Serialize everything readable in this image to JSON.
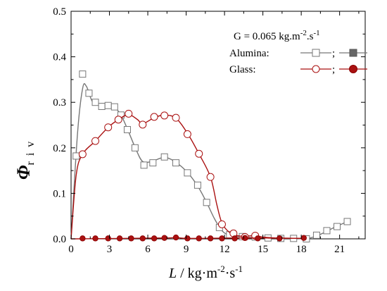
{
  "chart_data": {
    "type": "line",
    "xlim": [
      0,
      23
    ],
    "ylim": [
      0,
      0.5
    ],
    "xticks": [
      0,
      3,
      6,
      9,
      12,
      15,
      18,
      21
    ],
    "yticks": [
      0.0,
      0.1,
      0.2,
      0.3,
      0.4,
      0.5
    ],
    "xtick_labels": [
      "0",
      "3",
      "6",
      "9",
      "12",
      "15",
      "18",
      "21"
    ],
    "ytick_labels": [
      "0.0",
      "0.1",
      "0.2",
      "0.3",
      "0.4",
      "0.5"
    ],
    "xlabel": {
      "italic": "L",
      "text": " / kg·m",
      "sup1": "-2",
      "mid": "·s",
      "sup2": "-1"
    },
    "ylabel": {
      "symbol": "Φ",
      "subscript": "r i v"
    },
    "annotation": {
      "text": "G = 0.065 kg.m",
      "sup1": "-2",
      "mid": ".s",
      "sup2": "-1"
    },
    "legend": {
      "position": "top-right",
      "alumina_label": "Alumina:",
      "glass_label": "Glass:",
      "separator": ";"
    },
    "series": [
      {
        "name": "Alumina",
        "color": "#777777",
        "marker": "square-open",
        "points": [
          [
            0.4,
            0.182
          ],
          [
            0.9,
            0.362
          ],
          [
            1.4,
            0.32
          ],
          [
            1.9,
            0.3
          ],
          [
            2.4,
            0.291
          ],
          [
            2.9,
            0.293
          ],
          [
            3.4,
            0.29
          ],
          [
            3.9,
            0.272
          ],
          [
            4.4,
            0.24
          ],
          [
            5.0,
            0.2
          ],
          [
            5.7,
            0.162
          ],
          [
            6.4,
            0.167
          ],
          [
            7.3,
            0.18
          ],
          [
            8.2,
            0.167
          ],
          [
            9.1,
            0.145
          ],
          [
            9.9,
            0.118
          ],
          [
            10.6,
            0.08
          ],
          [
            11.6,
            0.025
          ],
          [
            12.4,
            0.009
          ],
          [
            13.4,
            0.005
          ],
          [
            14.4,
            0.004
          ],
          [
            15.4,
            0.002
          ],
          [
            16.4,
            0.001
          ],
          [
            17.4,
            0.001
          ],
          [
            18.4,
            0.0
          ],
          [
            19.2,
            0.008
          ],
          [
            20.0,
            0.018
          ],
          [
            20.8,
            0.027
          ],
          [
            21.6,
            0.038
          ]
        ],
        "curve": [
          [
            0,
            0
          ],
          [
            0.5,
            0.23
          ],
          [
            0.9,
            0.33
          ],
          [
            1.2,
            0.335
          ],
          [
            1.7,
            0.3
          ],
          [
            2.4,
            0.292
          ],
          [
            3.3,
            0.29
          ],
          [
            3.9,
            0.272
          ],
          [
            4.5,
            0.235
          ],
          [
            5.1,
            0.195
          ],
          [
            5.6,
            0.17
          ],
          [
            6.3,
            0.17
          ],
          [
            7.3,
            0.179
          ],
          [
            8.2,
            0.168
          ],
          [
            9.1,
            0.146
          ],
          [
            9.9,
            0.116
          ],
          [
            10.6,
            0.08
          ],
          [
            11.2,
            0.045
          ],
          [
            11.8,
            0.018
          ],
          [
            12.4,
            0.008
          ],
          [
            13.5,
            0.004
          ],
          [
            15.0,
            0.002
          ],
          [
            17.0,
            0.001
          ],
          [
            18.5,
            0.001
          ],
          [
            19.5,
            0.01
          ],
          [
            20.5,
            0.024
          ],
          [
            21.6,
            0.038
          ]
        ]
      },
      {
        "name": "Glass",
        "color": "#aa1111",
        "marker": "circle-open",
        "points": [
          [
            0.9,
            0.186
          ],
          [
            1.9,
            0.215
          ],
          [
            2.9,
            0.245
          ],
          [
            3.7,
            0.262
          ],
          [
            4.5,
            0.275
          ],
          [
            5.6,
            0.251
          ],
          [
            6.5,
            0.268
          ],
          [
            7.3,
            0.271
          ],
          [
            8.2,
            0.266
          ],
          [
            9.1,
            0.23
          ],
          [
            10.0,
            0.187
          ],
          [
            10.9,
            0.136
          ],
          [
            11.8,
            0.032
          ],
          [
            12.7,
            0.012
          ],
          [
            13.6,
            0.004
          ],
          [
            14.4,
            0.007
          ]
        ],
        "curve": [
          [
            0,
            0
          ],
          [
            0.4,
            0.14
          ],
          [
            0.9,
            0.186
          ],
          [
            1.9,
            0.215
          ],
          [
            2.9,
            0.245
          ],
          [
            3.7,
            0.262
          ],
          [
            4.5,
            0.273
          ],
          [
            5.2,
            0.262
          ],
          [
            5.6,
            0.253
          ],
          [
            6.5,
            0.266
          ],
          [
            7.3,
            0.272
          ],
          [
            8.2,
            0.265
          ],
          [
            9.1,
            0.232
          ],
          [
            10.0,
            0.187
          ],
          [
            10.9,
            0.136
          ],
          [
            11.4,
            0.075
          ],
          [
            11.8,
            0.035
          ],
          [
            12.4,
            0.014
          ],
          [
            13.2,
            0.006
          ],
          [
            14.4,
            0.007
          ],
          [
            15.0,
            0.004
          ],
          [
            16.0,
            0.002
          ],
          [
            18.0,
            0.001
          ]
        ]
      },
      {
        "name": "Glass (filled)",
        "color": "#aa1111",
        "marker": "circle-filled",
        "points": [
          [
            0.9,
            0.001
          ],
          [
            1.9,
            0.001
          ],
          [
            2.9,
            0.001
          ],
          [
            3.8,
            0.001
          ],
          [
            4.7,
            0.001
          ],
          [
            5.6,
            0.001
          ],
          [
            6.5,
            0.001
          ],
          [
            7.3,
            0.002
          ],
          [
            8.2,
            0.003
          ],
          [
            9.1,
            0.001
          ],
          [
            10.0,
            0.001
          ],
          [
            10.9,
            0.001
          ],
          [
            11.8,
            0.001
          ],
          [
            12.8,
            0.001
          ],
          [
            13.6,
            0.002
          ],
          [
            14.6,
            0.001
          ],
          [
            16.3,
            0.001
          ],
          [
            18.2,
            0.002
          ]
        ],
        "curve": [
          [
            0,
            0
          ],
          [
            7.3,
            0.002
          ],
          [
            8.2,
            0.004
          ],
          [
            9.1,
            0.001
          ],
          [
            13.6,
            0.002
          ],
          [
            18.2,
            0.001
          ]
        ]
      }
    ]
  }
}
